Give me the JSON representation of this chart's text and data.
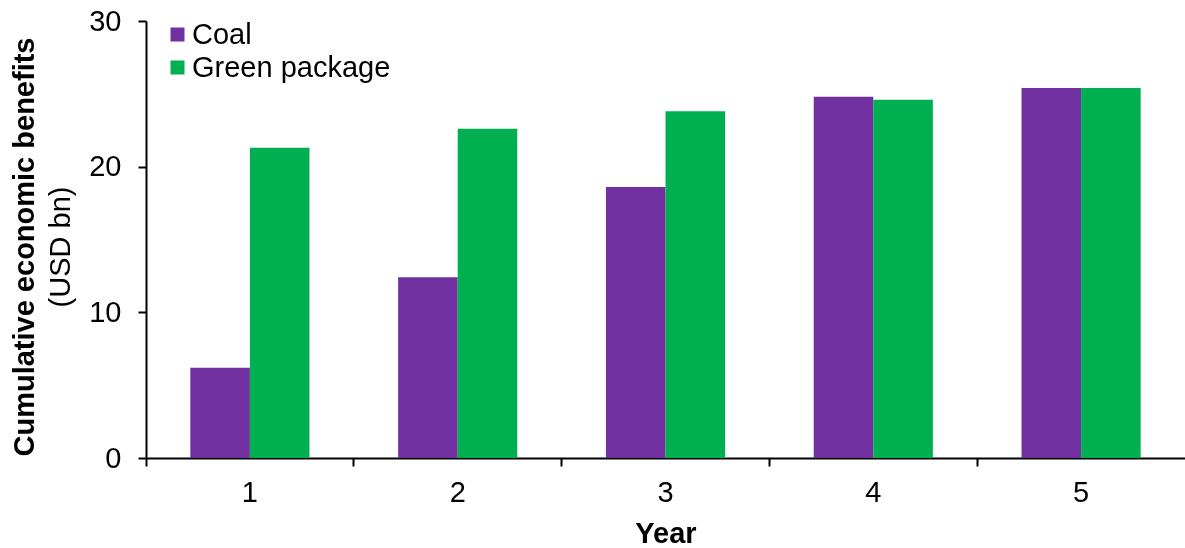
{
  "chart_data": {
    "type": "bar",
    "xlabel": "Year",
    "ylabel": "Cumulative economic benefits\n(USD bn)",
    "categories": [
      "1",
      "2",
      "3",
      "4",
      "5"
    ],
    "series": [
      {
        "name": "Coal",
        "color": "#7030a0",
        "values": [
          6.2,
          12.4,
          18.6,
          24.8,
          25.4
        ]
      },
      {
        "name": "Green package",
        "color": "#00b050",
        "values": [
          21.3,
          22.6,
          23.8,
          24.6,
          25.4
        ]
      }
    ],
    "ylim": [
      0,
      30
    ],
    "yticks": [
      0,
      10,
      20,
      30
    ],
    "legend": "top left"
  }
}
